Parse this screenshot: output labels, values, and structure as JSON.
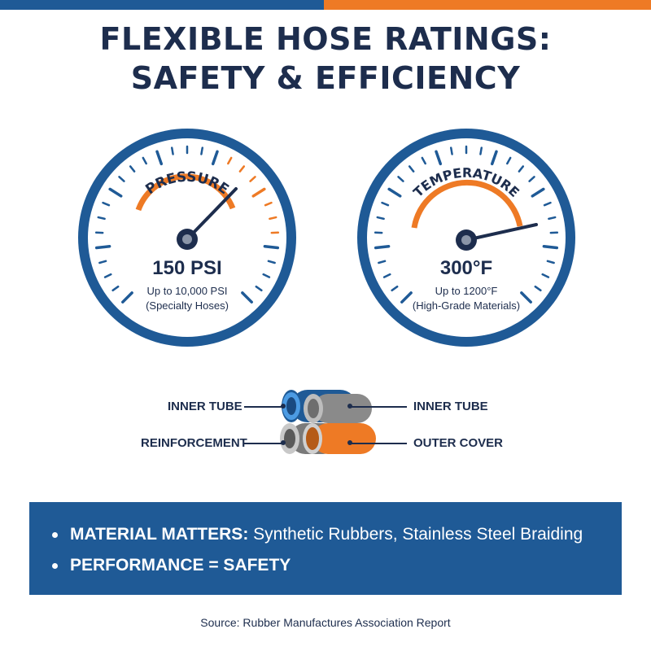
{
  "colors": {
    "accent_blue": "#1f5a96",
    "accent_orange": "#ee7a25",
    "text_navy": "#1d2d4d",
    "gray": "#808080"
  },
  "title": {
    "line1": "FLEXIBLE HOSE RATINGS:",
    "line2": "SAFETY & EFFICIENCY"
  },
  "gauges": {
    "pressure": {
      "label": "PRESSURE",
      "value": "150 PSI",
      "detail1": "Up to 10,000 PSI",
      "detail2": "(Specialty Hoses)"
    },
    "temperature": {
      "label": "TEMPERATURE",
      "value": "300°F",
      "detail1": "Up to 1200°F",
      "detail2": "(High-Grade Materials)"
    }
  },
  "hose": {
    "label_top_left": "INNER TUBE",
    "label_top_right": "INNER TUBE",
    "label_bottom_left": "REINFORCEMENT",
    "label_bottom_right": "OUTER COVER"
  },
  "banner": {
    "item1_bold": "MATERIAL MATTERS:",
    "item1_text": " Synthetic Rubbers, Stainless Steel Braiding",
    "item2_bold": "PERFORMANCE = SAFETY"
  },
  "source": "Source: Rubber Manufactures Association Report"
}
